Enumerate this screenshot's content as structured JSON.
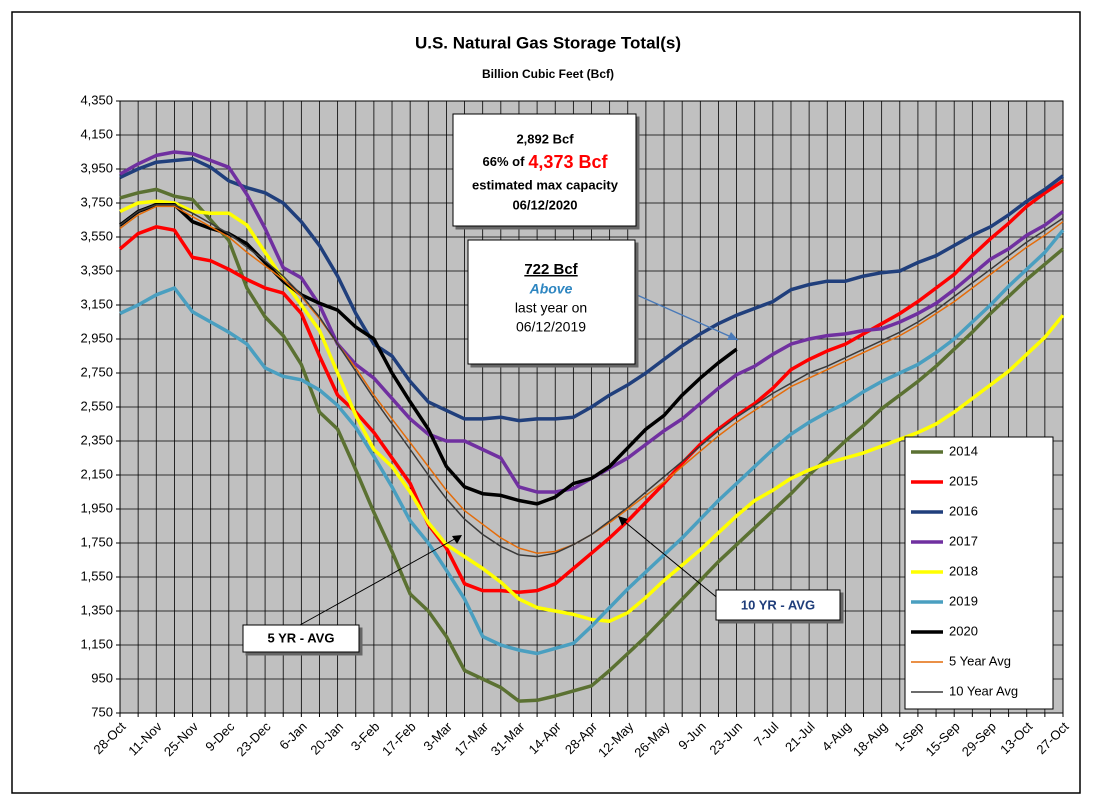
{
  "chart_data": {
    "type": "line",
    "title": "U.S. Natural Gas Storage Total(s)",
    "subtitle": "Billion Cubic Feet (Bcf)",
    "categories": [
      "28-Oct",
      null,
      "11-Nov",
      null,
      "25-Nov",
      null,
      "9-Dec",
      null,
      "23-Dec",
      null,
      "6-Jan",
      null,
      "20-Jan",
      null,
      "3-Feb",
      null,
      "17-Feb",
      null,
      "3-Mar",
      null,
      "17-Mar",
      null,
      "31-Mar",
      null,
      "14-Apr",
      null,
      "28-Apr",
      null,
      "12-May",
      null,
      "26-May",
      null,
      "9-Jun",
      null,
      "23-Jun",
      null,
      "7-Jul",
      null,
      "21-Jul",
      null,
      "4-Aug",
      null,
      "18-Aug",
      null,
      "1-Sep",
      null,
      "15-Sep",
      null,
      "29-Sep",
      null,
      "13-Oct",
      null,
      "27-Oct"
    ],
    "ylim": [
      750,
      4350
    ],
    "yticks": [
      750,
      950,
      {
        "value": 1150,
        "label": "1,150"
      },
      {
        "value": 1350,
        "label": "1,350"
      },
      {
        "value": 1550,
        "label": "1,550"
      },
      {
        "value": 1750,
        "label": "1,750"
      },
      {
        "value": 1950,
        "label": "1,950"
      },
      {
        "value": 2150,
        "label": "2,150"
      },
      {
        "value": 2350,
        "label": "2,350"
      },
      {
        "value": 2550,
        "label": "2,550"
      },
      {
        "value": 2750,
        "label": "2,750"
      },
      {
        "value": 2950,
        "label": "2,950"
      },
      {
        "value": 3150,
        "label": "3,150"
      },
      {
        "value": 3350,
        "label": "3,350"
      },
      {
        "value": 3550,
        "label": "3,550"
      },
      {
        "value": 3750,
        "label": "3,750"
      },
      {
        "value": 3950,
        "label": "3,950"
      },
      {
        "value": 4150,
        "label": "4,150"
      },
      {
        "value": 4350,
        "label": "4,350"
      }
    ],
    "grid": true,
    "legend": "lower right",
    "series": [
      {
        "name": "2014",
        "color": "#5b7132",
        "width": 3.5,
        "values": [
          3780,
          3810,
          3830,
          3790,
          3770,
          3650,
          3530,
          3250,
          3080,
          2970,
          2800,
          2520,
          2420,
          2180,
          1930,
          1700,
          1450,
          1350,
          1200,
          1000,
          950,
          900,
          820,
          825,
          850,
          880,
          910,
          1000,
          1100,
          1200,
          1310,
          1420,
          1530,
          1640,
          1740,
          1840,
          1940,
          2040,
          2150,
          2250,
          2350,
          2440,
          2540,
          2620,
          2700,
          2790,
          2890,
          2990,
          3100,
          3200,
          3300,
          3390,
          3480
        ]
      },
      {
        "name": "2015",
        "color": "#ff0000",
        "width": 3.5,
        "values": [
          3480,
          3570,
          3610,
          3590,
          3430,
          3410,
          3360,
          3300,
          3250,
          3220,
          3100,
          2850,
          2620,
          2520,
          2400,
          2250,
          2100,
          1860,
          1720,
          1510,
          1470,
          1470,
          1460,
          1470,
          1510,
          1600,
          1690,
          1780,
          1880,
          1990,
          2100,
          2220,
          2330,
          2420,
          2500,
          2570,
          2660,
          2770,
          2830,
          2880,
          2920,
          2980,
          3040,
          3100,
          3170,
          3250,
          3330,
          3440,
          3540,
          3630,
          3730,
          3810,
          3880
        ]
      },
      {
        "name": "2016",
        "color": "#203f7c",
        "width": 3.5,
        "values": [
          3900,
          3950,
          3990,
          4000,
          4010,
          3960,
          3880,
          3840,
          3810,
          3750,
          3640,
          3500,
          3320,
          3100,
          2920,
          2850,
          2700,
          2580,
          2530,
          2480,
          2480,
          2490,
          2470,
          2480,
          2480,
          2490,
          2550,
          2620,
          2680,
          2750,
          2830,
          2910,
          2980,
          3040,
          3090,
          3130,
          3170,
          3240,
          3270,
          3290,
          3290,
          3320,
          3340,
          3350,
          3400,
          3440,
          3500,
          3560,
          3610,
          3680,
          3760,
          3830,
          3910
        ]
      },
      {
        "name": "2017",
        "color": "#7030a0",
        "width": 3.5,
        "values": [
          3920,
          3980,
          4030,
          4050,
          4040,
          4000,
          3960,
          3800,
          3600,
          3370,
          3310,
          3150,
          2920,
          2800,
          2720,
          2600,
          2480,
          2390,
          2350,
          2350,
          2300,
          2250,
          2080,
          2050,
          2050,
          2070,
          2130,
          2190,
          2250,
          2330,
          2410,
          2480,
          2570,
          2660,
          2740,
          2790,
          2860,
          2920,
          2950,
          2970,
          2980,
          3000,
          3010,
          3050,
          3100,
          3160,
          3240,
          3330,
          3420,
          3480,
          3560,
          3620,
          3700
        ]
      },
      {
        "name": "2018",
        "color": "#ffff00",
        "width": 3.5,
        "values": [
          3700,
          3750,
          3760,
          3750,
          3700,
          3690,
          3690,
          3620,
          3460,
          3300,
          3150,
          3000,
          2750,
          2500,
          2300,
          2200,
          2050,
          1870,
          1740,
          1670,
          1600,
          1520,
          1420,
          1370,
          1350,
          1330,
          1300,
          1290,
          1340,
          1430,
          1530,
          1620,
          1710,
          1810,
          1910,
          2000,
          2060,
          2130,
          2180,
          2220,
          2250,
          2280,
          2320,
          2360,
          2400,
          2450,
          2520,
          2600,
          2680,
          2760,
          2860,
          2960,
          3090
        ]
      },
      {
        "name": "2019",
        "color": "#4a9fc0",
        "width": 3.5,
        "values": [
          3100,
          3150,
          3210,
          3250,
          3110,
          3050,
          2990,
          2920,
          2780,
          2730,
          2710,
          2650,
          2560,
          2430,
          2260,
          2080,
          1880,
          1750,
          1590,
          1420,
          1200,
          1150,
          1120,
          1100,
          1130,
          1160,
          1260,
          1370,
          1480,
          1580,
          1680,
          1780,
          1890,
          2000,
          2100,
          2200,
          2300,
          2390,
          2460,
          2520,
          2570,
          2640,
          2700,
          2750,
          2800,
          2870,
          2950,
          3050,
          3150,
          3260,
          3360,
          3460,
          3590
        ]
      },
      {
        "name": "2020",
        "color": "#000000",
        "width": 3.5,
        "values": [
          3620,
          3700,
          3740,
          3740,
          3640,
          3600,
          3570,
          3510,
          3400,
          3290,
          3210,
          3160,
          3120,
          3020,
          2950,
          2750,
          2580,
          2420,
          2200,
          2080,
          2040,
          2030,
          2000,
          1980,
          2020,
          2100,
          2130,
          2200,
          2310,
          2420,
          2500,
          2620,
          2720,
          2810,
          2890,
          null,
          null,
          null,
          null,
          null,
          null,
          null,
          null,
          null,
          null,
          null,
          null,
          null,
          null,
          null,
          null,
          null,
          null
        ]
      },
      {
        "name": "5 Year Avg",
        "color": "#e46c0a",
        "width": 1.5,
        "values": [
          3600,
          3680,
          3730,
          3730,
          3670,
          3610,
          3550,
          3460,
          3380,
          3300,
          3200,
          3070,
          2920,
          2780,
          2620,
          2480,
          2340,
          2200,
          2060,
          1940,
          1860,
          1780,
          1720,
          1690,
          1700,
          1740,
          1800,
          1870,
          1950,
          2030,
          2110,
          2200,
          2290,
          2380,
          2460,
          2530,
          2600,
          2670,
          2720,
          2770,
          2820,
          2870,
          2920,
          2970,
          3030,
          3100,
          3170,
          3250,
          3330,
          3410,
          3490,
          3560,
          3640
        ]
      },
      {
        "name": "10 Year Avg",
        "color": "#3a3a3a",
        "width": 1.5,
        "values": [
          3620,
          3700,
          3740,
          3740,
          3690,
          3630,
          3570,
          3490,
          3410,
          3320,
          3210,
          3080,
          2920,
          2760,
          2600,
          2450,
          2300,
          2150,
          2010,
          1890,
          1800,
          1730,
          1680,
          1670,
          1690,
          1740,
          1800,
          1880,
          1960,
          2050,
          2140,
          2230,
          2320,
          2410,
          2490,
          2560,
          2630,
          2690,
          2750,
          2790,
          2840,
          2890,
          2940,
          2990,
          3050,
          3120,
          3200,
          3280,
          3360,
          3440,
          3520,
          3590,
          3660
        ]
      }
    ],
    "annotations": {
      "capacity_box": [
        "2,892 Bcf",
        "66% of",
        "4,373 Bcf",
        "estimated max capacity",
        "06/12/2020"
      ],
      "yoy_box": [
        "722 Bcf",
        "Above",
        "last year on",
        "06/12/2019"
      ],
      "five_year_label": "5  YR - AVG",
      "ten_year_label": "10  YR - AVG"
    }
  }
}
